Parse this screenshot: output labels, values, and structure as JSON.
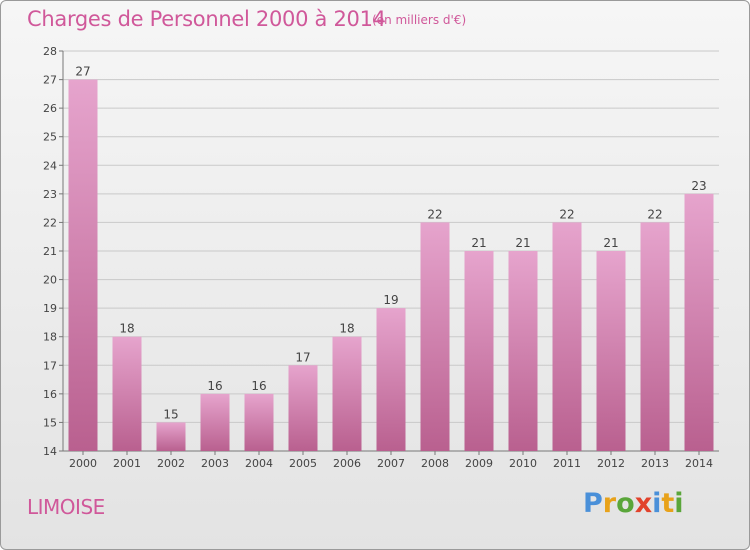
{
  "header": {
    "title": "Charges de Personnel 2000 à 2014",
    "unit_note": "(en milliers d'€)"
  },
  "footer": {
    "commune": "LIMOISE",
    "logo_text": "Proxiti"
  },
  "colors": {
    "accent": "#d0589a",
    "bar_top": "#e6a4cd",
    "bar_bottom": "#b9608f",
    "logo": [
      "#4a90d9",
      "#e8a21a",
      "#5aa63a",
      "#e2422b",
      "#4a90d9",
      "#e8a21a",
      "#5aa63a"
    ]
  },
  "chart_data": {
    "type": "bar",
    "categories": [
      "2000",
      "2001",
      "2002",
      "2003",
      "2004",
      "2005",
      "2006",
      "2007",
      "2008",
      "2009",
      "2010",
      "2011",
      "2012",
      "2013",
      "2014"
    ],
    "values": [
      27,
      18,
      15,
      16,
      16,
      17,
      18,
      19,
      22,
      21,
      21,
      22,
      21,
      22,
      23
    ],
    "title": "Charges de Personnel 2000 à 2014",
    "subtitle": "(en milliers d'€)",
    "xlabel": "",
    "ylabel": "",
    "ylim": [
      14,
      28
    ],
    "yticks": [
      14,
      15,
      16,
      17,
      18,
      19,
      20,
      21,
      22,
      23,
      24,
      25,
      26,
      27,
      28
    ],
    "grid": true,
    "legend": "none"
  }
}
